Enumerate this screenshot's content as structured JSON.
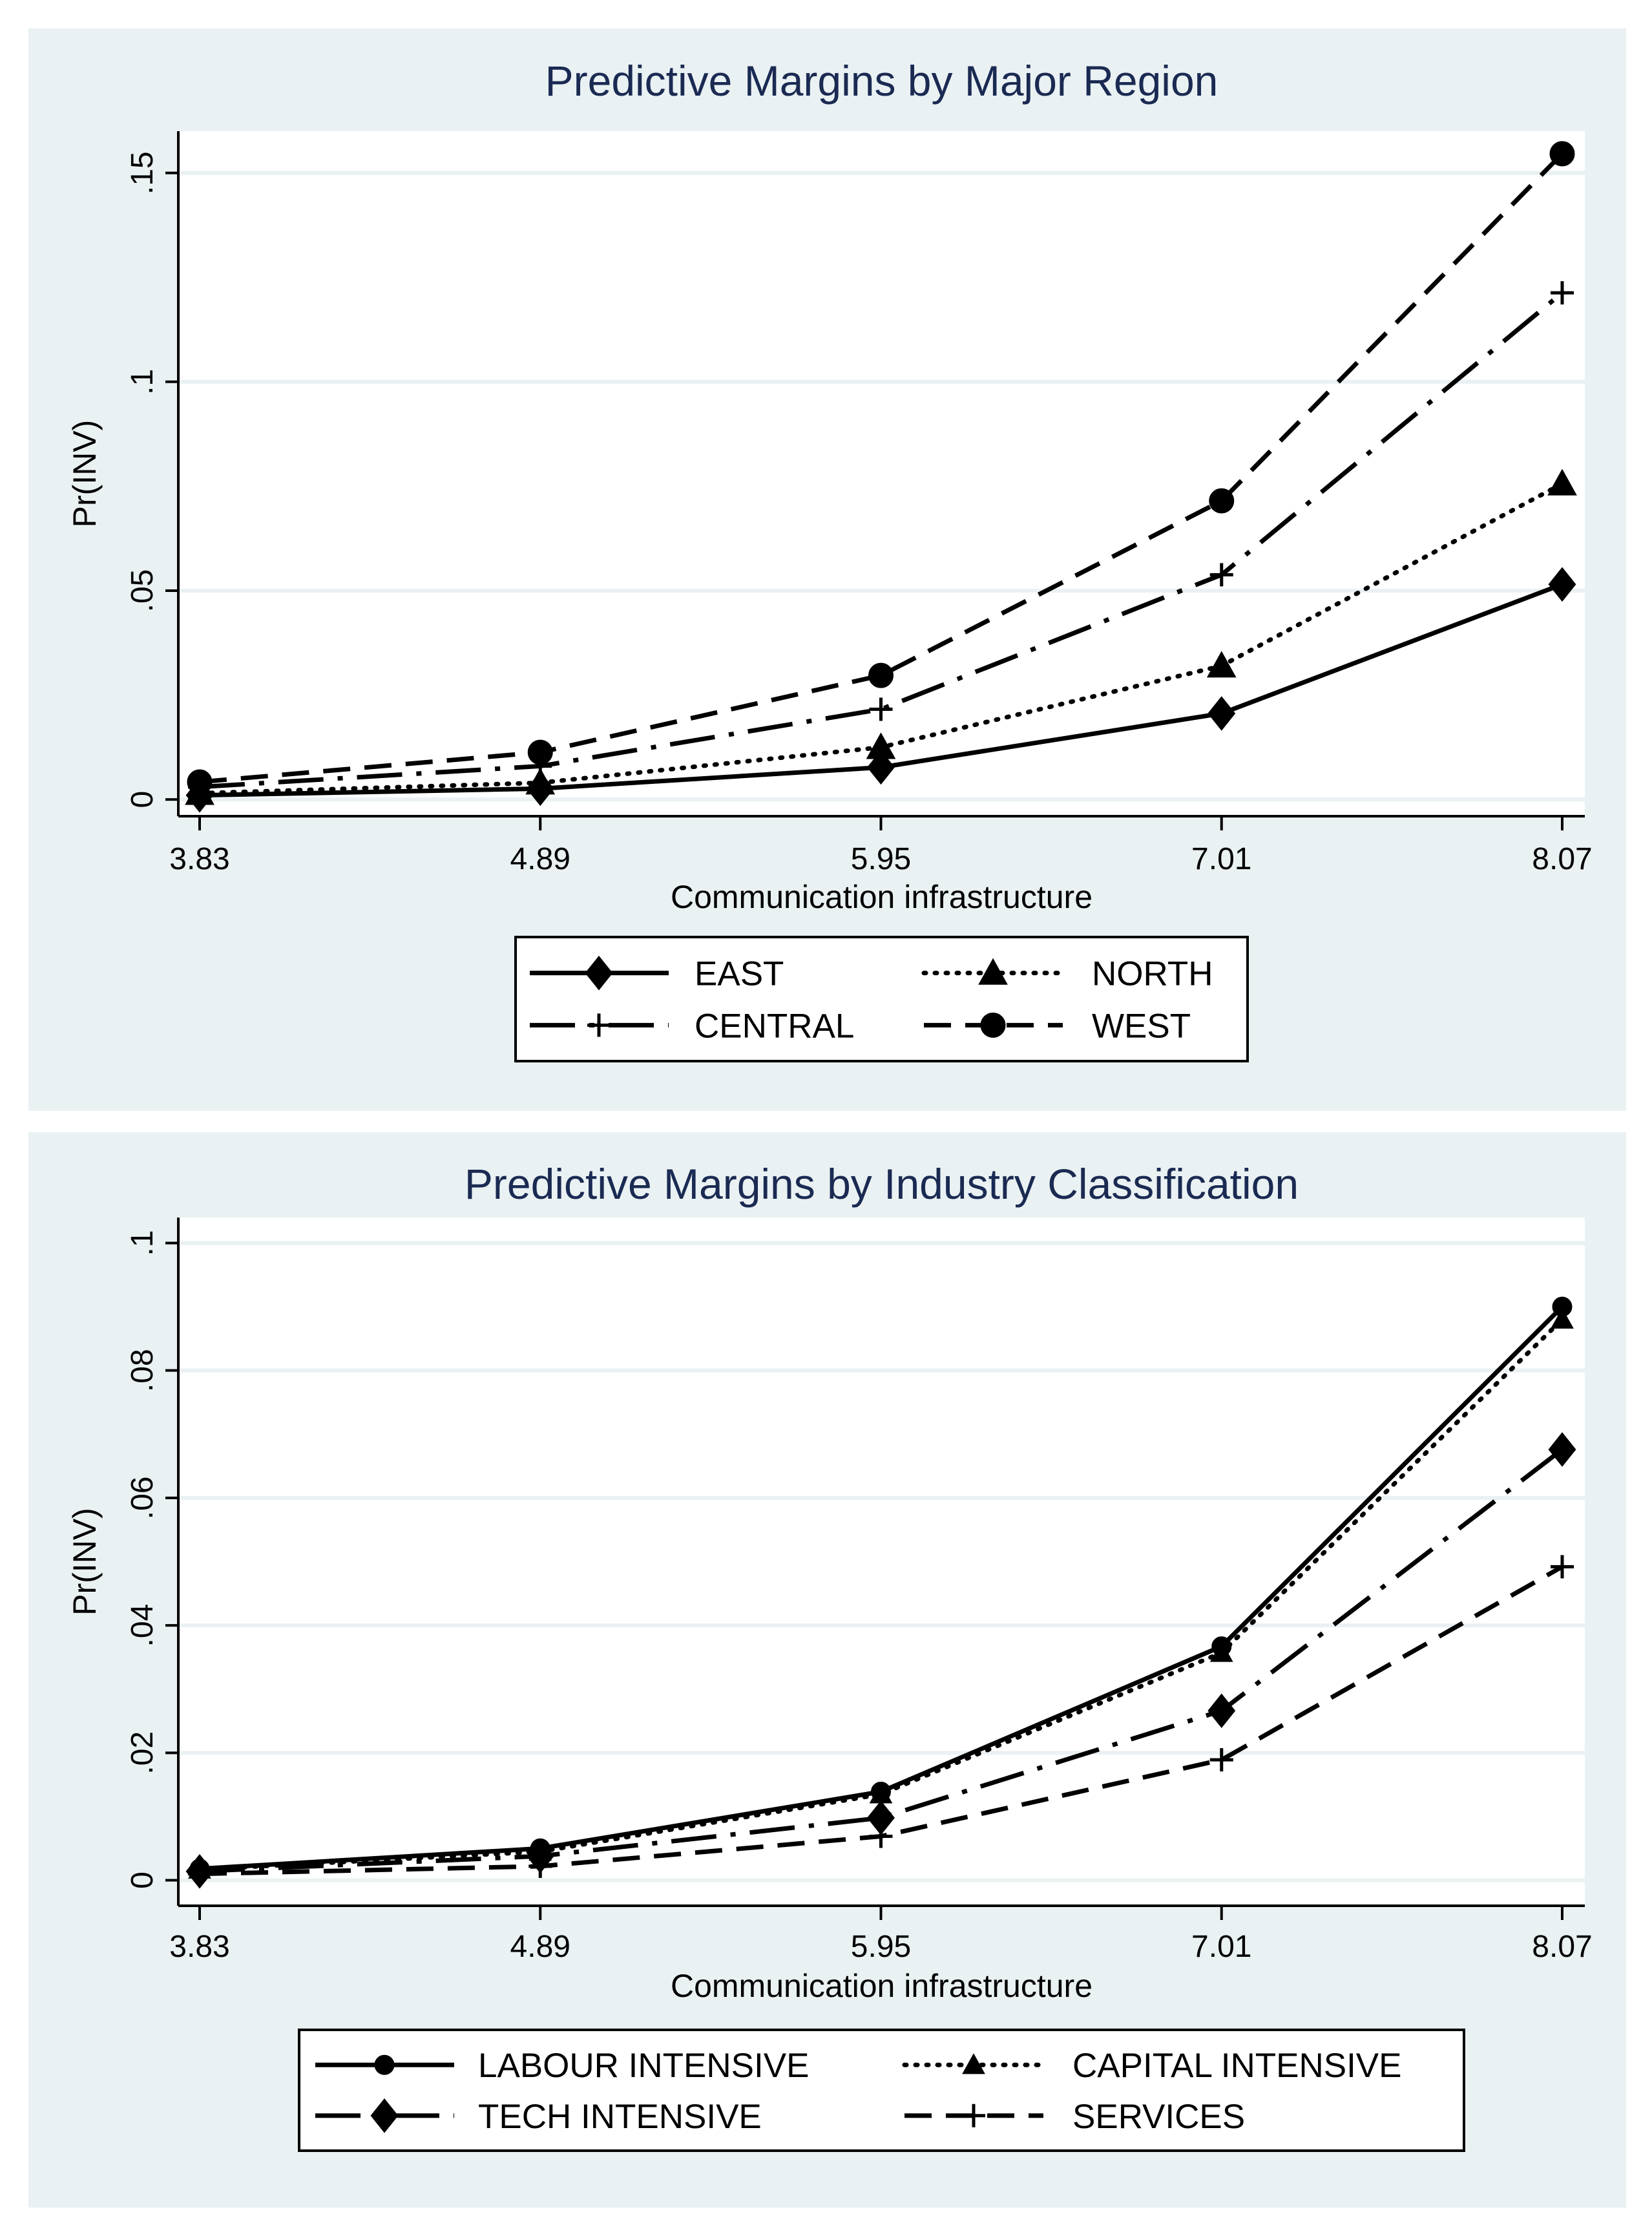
{
  "colors": {
    "panel_bg": "#eaf1f3",
    "plot_bg": "#ffffff",
    "grid": "#eaf1f3",
    "title": "#1a2a52",
    "line": "#000000"
  },
  "chart_data": [
    {
      "type": "line",
      "title": "Predictive Margins by Major Region",
      "xlabel": "Communication infrastructure",
      "ylabel": "Pr(INV)",
      "x": [
        3.83,
        4.89,
        5.95,
        7.01,
        8.07
      ],
      "x_tick_labels": [
        "3.83",
        "4.89",
        "5.95",
        "7.01",
        "8.07"
      ],
      "y_ticks": [
        0,
        0.05,
        0.1,
        0.15
      ],
      "y_tick_labels": [
        "0",
        ".05",
        ".1",
        ".15"
      ],
      "ylim": [
        -0.004,
        0.16
      ],
      "grid": true,
      "legend_position": "bottom",
      "series": [
        {
          "name": "EAST",
          "marker": "diamond",
          "dash": "solid",
          "values": [
            0.001,
            0.0026,
            0.0077,
            0.0206,
            0.0515
          ]
        },
        {
          "name": "NORTH",
          "marker": "triangle",
          "dash": "dot",
          "values": [
            0.0015,
            0.004,
            0.0125,
            0.032,
            0.0756
          ]
        },
        {
          "name": "CENTRAL",
          "marker": "plus",
          "dash": "dashdot",
          "values": [
            0.003,
            0.008,
            0.0216,
            0.0538,
            0.1213
          ]
        },
        {
          "name": "WEST",
          "marker": "circle",
          "dash": "dash",
          "values": [
            0.0042,
            0.0113,
            0.0297,
            0.0715,
            0.1546
          ]
        }
      ]
    },
    {
      "type": "line",
      "title": "Predictive Margins by Industry Classification",
      "xlabel": "Communication infrastructure",
      "ylabel": "Pr(INV)",
      "x": [
        3.83,
        4.89,
        5.95,
        7.01,
        8.07
      ],
      "x_tick_labels": [
        "3.83",
        "4.89",
        "5.95",
        "7.01",
        "8.07"
      ],
      "y_ticks": [
        0,
        0.02,
        0.04,
        0.06,
        0.08,
        0.1
      ],
      "y_tick_labels": [
        "0",
        ".02",
        ".04",
        ".06",
        ".08",
        ".1"
      ],
      "ylim": [
        -0.004,
        0.104
      ],
      "grid": true,
      "legend_position": "bottom",
      "series": [
        {
          "name": "LABOUR INTENSIVE",
          "marker": "circle-small",
          "dash": "solid",
          "values": [
            0.0018,
            0.005,
            0.0139,
            0.0367,
            0.09
          ]
        },
        {
          "name": "CAPITAL INTENSIVE",
          "marker": "triangle-small",
          "dash": "dot",
          "values": [
            0.0017,
            0.0045,
            0.0135,
            0.0357,
            0.088
          ]
        },
        {
          "name": "TECH INTENSIVE",
          "marker": "diamond",
          "dash": "dashdot",
          "values": [
            0.0014,
            0.0038,
            0.0098,
            0.0266,
            0.0676
          ]
        },
        {
          "name": "SERVICES",
          "marker": "plus",
          "dash": "dash",
          "values": [
            0.001,
            0.0022,
            0.0069,
            0.0189,
            0.0492
          ]
        }
      ]
    }
  ]
}
